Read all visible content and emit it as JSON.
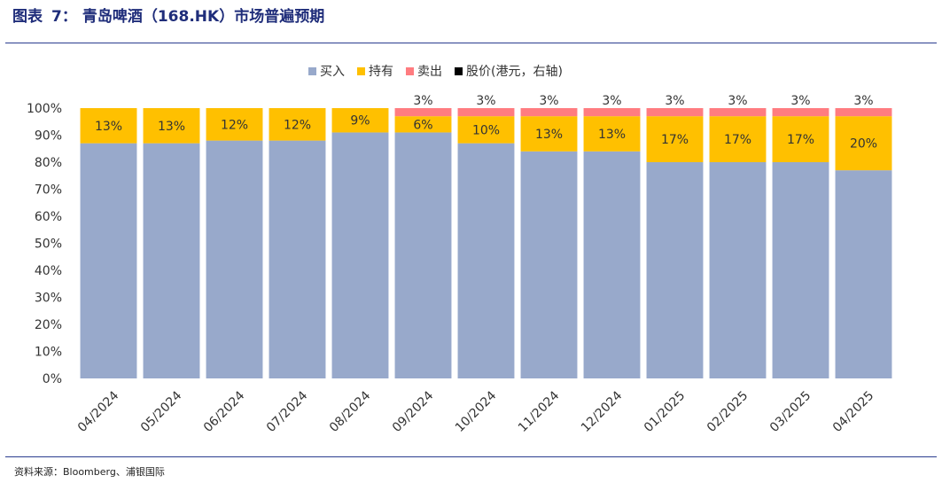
{
  "figure": {
    "prefix": "图表",
    "number": "7：",
    "caption": "青岛啤酒（168.HK）市场普遍预期",
    "source": "资料来源：Bloomberg、浦银国际"
  },
  "chart_data": {
    "type": "bar",
    "stacked": true,
    "normalized": true,
    "categories": [
      "04/2024",
      "05/2024",
      "06/2024",
      "07/2024",
      "08/2024",
      "09/2024",
      "10/2024",
      "11/2024",
      "12/2024",
      "01/2025",
      "02/2025",
      "03/2025",
      "04/2025"
    ],
    "series": [
      {
        "name": "买入",
        "color": "#98a9cb",
        "values": [
          87,
          87,
          88,
          88,
          91,
          91,
          87,
          84,
          84,
          80,
          80,
          80,
          77
        ],
        "labels": [
          "",
          "",
          "",
          "",
          "",
          "",
          "",
          "",
          "",
          "",
          "",
          "",
          ""
        ]
      },
      {
        "name": "持有",
        "color": "#ffc000",
        "values": [
          13,
          13,
          12,
          12,
          9,
          6,
          10,
          13,
          13,
          17,
          17,
          17,
          20
        ],
        "labels": [
          "13%",
          "13%",
          "12%",
          "12%",
          "9%",
          "6%",
          "10%",
          "13%",
          "13%",
          "17%",
          "17%",
          "17%",
          "20%"
        ]
      },
      {
        "name": "卖出",
        "color": "#ff7c80",
        "values": [
          0,
          0,
          0,
          0,
          0,
          3,
          3,
          3,
          3,
          3,
          3,
          3,
          3
        ],
        "labels": [
          "",
          "",
          "",
          "",
          "",
          "3%",
          "3%",
          "3%",
          "3%",
          "3%",
          "3%",
          "3%",
          "3%"
        ]
      }
    ],
    "extra_legend": [
      {
        "name": "股价(港元，右轴)",
        "color": "#000000"
      }
    ],
    "yticks": [
      "0%",
      "10%",
      "20%",
      "30%",
      "40%",
      "50%",
      "60%",
      "70%",
      "80%",
      "90%",
      "100%"
    ],
    "ylim": [
      0,
      100
    ],
    "legend_position": "top-center",
    "grid": false
  }
}
